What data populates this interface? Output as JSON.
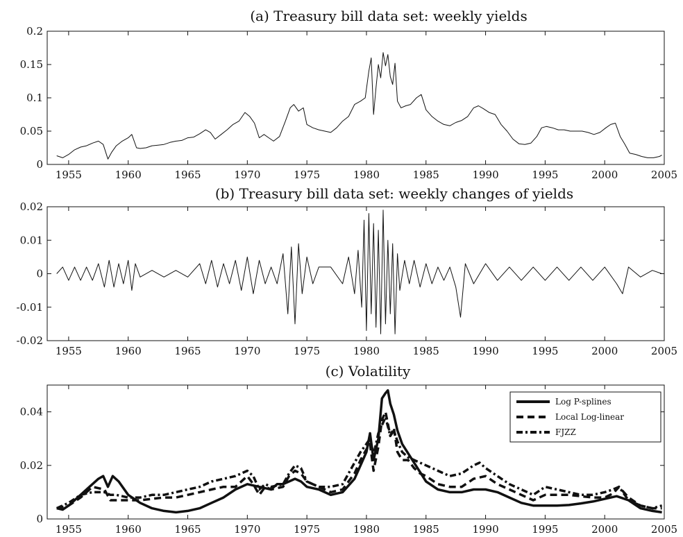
{
  "chart_data": [
    {
      "type": "line",
      "title": "(a) Treasury bill data set: weekly yields",
      "xlabel": "",
      "ylabel": "",
      "xlim": [
        1953.2,
        2005
      ],
      "ylim": [
        0,
        0.2
      ],
      "xticks": [
        "1955",
        "1960",
        "1965",
        "1970",
        "1975",
        "1980",
        "1985",
        "1990",
        "1995",
        "2000",
        "2005"
      ],
      "yticks": [
        "0",
        "0.05",
        "0.1",
        "0.15",
        "0.2"
      ],
      "grid": false,
      "series": [
        {
          "x": [
            1954.0,
            1954.5,
            1955.0,
            1955.5,
            1956.0,
            1956.5,
            1957.0,
            1957.5,
            1957.9,
            1958.3,
            1958.6,
            1959.0,
            1959.5,
            1960.0,
            1960.3,
            1960.7,
            1961.0,
            1961.5,
            1962.0,
            1962.5,
            1963.0,
            1963.5,
            1964.0,
            1964.5,
            1965.0,
            1965.5,
            1966.0,
            1966.5,
            1966.9,
            1967.3,
            1967.8,
            1968.3,
            1968.8,
            1969.3,
            1969.8,
            1970.2,
            1970.6,
            1971.0,
            1971.4,
            1971.8,
            1972.2,
            1972.7,
            1973.2,
            1973.6,
            1973.9,
            1974.3,
            1974.7,
            1975.0,
            1975.5,
            1976.0,
            1976.5,
            1977.0,
            1977.5,
            1978.0,
            1978.5,
            1979.0,
            1979.5,
            1979.9,
            1980.2,
            1980.4,
            1980.6,
            1980.8,
            1981.0,
            1981.2,
            1981.4,
            1981.6,
            1981.8,
            1982.0,
            1982.2,
            1982.4,
            1982.6,
            1982.9,
            1983.3,
            1983.7,
            1984.2,
            1984.6,
            1985.0,
            1985.5,
            1986.0,
            1986.5,
            1987.0,
            1987.5,
            1988.0,
            1988.5,
            1989.0,
            1989.4,
            1989.8,
            1990.3,
            1990.8,
            1991.3,
            1991.8,
            1992.3,
            1992.8,
            1993.3,
            1993.8,
            1994.3,
            1994.7,
            1995.1,
            1995.6,
            1996.1,
            1996.6,
            1997.1,
            1997.6,
            1998.1,
            1998.6,
            1999.1,
            1999.6,
            2000.1,
            2000.5,
            2000.9,
            2001.3,
            2001.7,
            2002.1,
            2002.6,
            2003.1,
            2003.6,
            2004.1,
            2004.6,
            2004.8
          ],
          "y": [
            0.013,
            0.01,
            0.015,
            0.022,
            0.026,
            0.028,
            0.032,
            0.035,
            0.03,
            0.008,
            0.018,
            0.028,
            0.035,
            0.04,
            0.045,
            0.025,
            0.024,
            0.025,
            0.028,
            0.029,
            0.03,
            0.033,
            0.035,
            0.036,
            0.04,
            0.041,
            0.046,
            0.052,
            0.048,
            0.038,
            0.045,
            0.052,
            0.06,
            0.065,
            0.078,
            0.072,
            0.062,
            0.04,
            0.045,
            0.04,
            0.035,
            0.042,
            0.065,
            0.085,
            0.09,
            0.08,
            0.085,
            0.06,
            0.055,
            0.052,
            0.05,
            0.048,
            0.055,
            0.065,
            0.072,
            0.09,
            0.095,
            0.1,
            0.14,
            0.16,
            0.075,
            0.115,
            0.15,
            0.13,
            0.168,
            0.148,
            0.165,
            0.132,
            0.12,
            0.152,
            0.095,
            0.085,
            0.088,
            0.09,
            0.1,
            0.105,
            0.082,
            0.072,
            0.065,
            0.06,
            0.058,
            0.063,
            0.066,
            0.072,
            0.085,
            0.088,
            0.084,
            0.078,
            0.075,
            0.06,
            0.05,
            0.038,
            0.031,
            0.03,
            0.032,
            0.042,
            0.055,
            0.057,
            0.055,
            0.052,
            0.052,
            0.05,
            0.05,
            0.05,
            0.048,
            0.045,
            0.048,
            0.055,
            0.06,
            0.062,
            0.042,
            0.03,
            0.017,
            0.015,
            0.012,
            0.01,
            0.01,
            0.012,
            0.014
          ]
        }
      ]
    },
    {
      "type": "line",
      "title": "(b) Treasury bill data set: weekly changes of yields",
      "xlabel": "",
      "ylabel": "",
      "xlim": [
        1953.2,
        2005
      ],
      "ylim": [
        -0.02,
        0.02
      ],
      "xticks": [
        "1955",
        "1960",
        "1965",
        "1970",
        "1975",
        "1980",
        "1985",
        "1990",
        "1995",
        "2000",
        "2005"
      ],
      "yticks": [
        "-0.02",
        "-0.01",
        "0",
        "0.01",
        "0.02"
      ],
      "grid": false,
      "series": [
        {
          "x": [
            1954.0,
            1954.5,
            1955.0,
            1955.5,
            1956.0,
            1956.5,
            1957.0,
            1957.5,
            1958.0,
            1958.4,
            1958.8,
            1959.2,
            1959.6,
            1960.0,
            1960.3,
            1960.6,
            1961.0,
            1962.0,
            1963.0,
            1964.0,
            1965.0,
            1966.0,
            1966.5,
            1967.0,
            1967.5,
            1968.0,
            1968.5,
            1969.0,
            1969.5,
            1970.0,
            1970.5,
            1971.0,
            1971.5,
            1972.0,
            1972.5,
            1973.0,
            1973.4,
            1973.7,
            1974.0,
            1974.3,
            1974.6,
            1975.0,
            1975.5,
            1976.0,
            1977.0,
            1978.0,
            1978.5,
            1979.0,
            1979.3,
            1979.6,
            1979.8,
            1980.0,
            1980.2,
            1980.4,
            1980.6,
            1980.8,
            1981.0,
            1981.2,
            1981.4,
            1981.6,
            1981.8,
            1982.0,
            1982.2,
            1982.4,
            1982.6,
            1982.8,
            1983.2,
            1983.6,
            1984.0,
            1984.5,
            1985.0,
            1985.5,
            1986.0,
            1986.5,
            1987.0,
            1987.5,
            1987.9,
            1988.3,
            1989.0,
            1990.0,
            1991.0,
            1992.0,
            1993.0,
            1994.0,
            1995.0,
            1996.0,
            1997.0,
            1998.0,
            1999.0,
            2000.0,
            2001.0,
            2001.5,
            2002.0,
            2003.0,
            2004.0,
            2004.8
          ],
          "y": [
            0.0,
            0.002,
            -0.002,
            0.002,
            -0.002,
            0.002,
            -0.002,
            0.003,
            -0.004,
            0.004,
            -0.004,
            0.003,
            -0.003,
            0.004,
            -0.005,
            0.003,
            -0.001,
            0.001,
            -0.001,
            0.001,
            -0.001,
            0.003,
            -0.003,
            0.004,
            -0.004,
            0.003,
            -0.003,
            0.004,
            -0.005,
            0.005,
            -0.006,
            0.004,
            -0.003,
            0.002,
            -0.003,
            0.006,
            -0.012,
            0.008,
            -0.015,
            0.009,
            -0.006,
            0.005,
            -0.003,
            0.002,
            0.002,
            -0.003,
            0.005,
            -0.006,
            0.007,
            -0.01,
            0.016,
            -0.017,
            0.018,
            -0.012,
            0.015,
            -0.016,
            0.013,
            -0.018,
            0.019,
            -0.015,
            0.01,
            -0.012,
            0.009,
            -0.018,
            0.006,
            -0.005,
            0.004,
            -0.003,
            0.004,
            -0.004,
            0.003,
            -0.003,
            0.002,
            -0.002,
            0.002,
            -0.004,
            -0.013,
            0.003,
            -0.003,
            0.003,
            -0.002,
            0.002,
            -0.002,
            0.002,
            -0.002,
            0.002,
            -0.002,
            0.002,
            -0.002,
            0.002,
            -0.003,
            -0.006,
            0.002,
            -0.001,
            0.001,
            0.0
          ]
        }
      ]
    },
    {
      "type": "line",
      "title": "(c) Volatility",
      "xlabel": "",
      "ylabel": "",
      "xlim": [
        1953.2,
        2005
      ],
      "ylim": [
        0,
        0.05
      ],
      "xticks": [
        "1955",
        "1960",
        "1965",
        "1970",
        "1975",
        "1980",
        "1985",
        "1990",
        "1995",
        "2000",
        "2005"
      ],
      "yticks": [
        "0",
        "0.02",
        "0.04"
      ],
      "grid": false,
      "legend_position": "top-right",
      "series": [
        {
          "name": "Log P-splines",
          "style": "solid",
          "x": [
            1954.0,
            1954.5,
            1955.0,
            1956.0,
            1957.0,
            1957.5,
            1957.9,
            1958.3,
            1958.7,
            1959.2,
            1960.0,
            1961.0,
            1962.0,
            1963.0,
            1964.0,
            1965.0,
            1966.0,
            1967.0,
            1968.0,
            1969.0,
            1970.0,
            1971.0,
            1972.0,
            1972.5,
            1973.0,
            1973.5,
            1974.0,
            1974.5,
            1975.0,
            1976.0,
            1977.0,
            1978.0,
            1979.0,
            1979.5,
            1980.0,
            1980.3,
            1980.6,
            1981.0,
            1981.3,
            1981.6,
            1981.8,
            1982.0,
            1982.3,
            1982.6,
            1983.0,
            1984.0,
            1985.0,
            1986.0,
            1987.0,
            1988.0,
            1989.0,
            1990.0,
            1991.0,
            1992.0,
            1993.0,
            1994.0,
            1995.0,
            1996.0,
            1997.0,
            1998.0,
            1999.0,
            2000.0,
            2001.0,
            2002.0,
            2003.0,
            2004.0,
            2004.8
          ],
          "y": [
            0.004,
            0.0035,
            0.005,
            0.009,
            0.013,
            0.015,
            0.016,
            0.012,
            0.016,
            0.014,
            0.009,
            0.006,
            0.004,
            0.003,
            0.0025,
            0.003,
            0.004,
            0.006,
            0.008,
            0.011,
            0.013,
            0.012,
            0.011,
            0.013,
            0.013,
            0.014,
            0.015,
            0.014,
            0.012,
            0.011,
            0.009,
            0.01,
            0.015,
            0.02,
            0.025,
            0.032,
            0.022,
            0.03,
            0.045,
            0.047,
            0.048,
            0.043,
            0.039,
            0.033,
            0.028,
            0.021,
            0.014,
            0.011,
            0.01,
            0.01,
            0.011,
            0.011,
            0.01,
            0.008,
            0.006,
            0.005,
            0.005,
            0.005,
            0.0052,
            0.0058,
            0.0065,
            0.0075,
            0.0085,
            0.007,
            0.004,
            0.003,
            0.0025
          ]
        },
        {
          "name": "Local Log-linear",
          "style": "dashed",
          "x": [
            1954.0,
            1955.0,
            1956.0,
            1957.0,
            1958.0,
            1958.5,
            1959.0,
            1960.0,
            1961.0,
            1962.0,
            1963.0,
            1964.0,
            1965.0,
            1966.0,
            1967.0,
            1968.0,
            1969.0,
            1970.0,
            1970.5,
            1971.0,
            1971.5,
            1972.0,
            1973.0,
            1973.5,
            1974.0,
            1974.5,
            1975.0,
            1976.0,
            1977.0,
            1978.0,
            1979.0,
            1979.5,
            1980.0,
            1980.3,
            1980.6,
            1981.0,
            1981.3,
            1981.6,
            1982.0,
            1982.3,
            1982.6,
            1983.0,
            1983.5,
            1984.0,
            1984.5,
            1985.0,
            1986.0,
            1987.0,
            1988.0,
            1989.0,
            1990.0,
            1991.0,
            1992.0,
            1993.0,
            1994.0,
            1995.0,
            1996.0,
            1997.0,
            1998.0,
            1999.0,
            2000.0,
            2000.7,
            2001.2,
            2002.0,
            2003.0,
            2004.0,
            2004.8
          ],
          "y": [
            0.004,
            0.005,
            0.008,
            0.012,
            0.011,
            0.007,
            0.007,
            0.007,
            0.007,
            0.0075,
            0.008,
            0.008,
            0.009,
            0.01,
            0.011,
            0.012,
            0.012,
            0.016,
            0.013,
            0.009,
            0.012,
            0.011,
            0.012,
            0.016,
            0.018,
            0.017,
            0.014,
            0.012,
            0.01,
            0.011,
            0.017,
            0.022,
            0.026,
            0.028,
            0.018,
            0.027,
            0.037,
            0.04,
            0.031,
            0.034,
            0.025,
            0.022,
            0.022,
            0.019,
            0.017,
            0.016,
            0.013,
            0.012,
            0.012,
            0.015,
            0.016,
            0.013,
            0.011,
            0.009,
            0.007,
            0.009,
            0.009,
            0.009,
            0.0085,
            0.008,
            0.008,
            0.0095,
            0.012,
            0.008,
            0.005,
            0.004,
            0.004
          ]
        },
        {
          "name": "FJZZ",
          "style": "dashdot",
          "x": [
            1954.0,
            1955.0,
            1956.0,
            1957.0,
            1958.0,
            1958.5,
            1959.0,
            1960.0,
            1961.0,
            1962.0,
            1963.0,
            1964.0,
            1965.0,
            1966.0,
            1967.0,
            1968.0,
            1969.0,
            1970.0,
            1970.5,
            1971.0,
            1971.5,
            1972.0,
            1973.0,
            1973.5,
            1974.0,
            1974.5,
            1975.0,
            1976.0,
            1977.0,
            1978.0,
            1979.0,
            1979.5,
            1980.0,
            1980.3,
            1980.6,
            1981.0,
            1981.3,
            1981.6,
            1982.0,
            1982.3,
            1982.6,
            1983.0,
            1983.5,
            1984.0,
            1985.0,
            1986.0,
            1987.0,
            1988.0,
            1989.0,
            1989.5,
            1990.0,
            1991.0,
            1992.0,
            1993.0,
            1994.0,
            1995.0,
            1996.0,
            1997.0,
            1998.0,
            1999.0,
            2000.0,
            2000.7,
            2001.2,
            2002.0,
            2003.0,
            2004.0,
            2004.8
          ],
          "y": [
            0.004,
            0.006,
            0.009,
            0.01,
            0.01,
            0.009,
            0.009,
            0.008,
            0.008,
            0.009,
            0.009,
            0.01,
            0.011,
            0.012,
            0.014,
            0.015,
            0.016,
            0.018,
            0.016,
            0.011,
            0.013,
            0.012,
            0.013,
            0.017,
            0.02,
            0.019,
            0.014,
            0.012,
            0.012,
            0.013,
            0.021,
            0.025,
            0.028,
            0.03,
            0.024,
            0.032,
            0.035,
            0.038,
            0.031,
            0.033,
            0.029,
            0.025,
            0.023,
            0.022,
            0.02,
            0.018,
            0.016,
            0.017,
            0.02,
            0.021,
            0.019,
            0.016,
            0.013,
            0.011,
            0.009,
            0.012,
            0.011,
            0.01,
            0.009,
            0.009,
            0.01,
            0.011,
            0.012,
            0.007,
            0.005,
            0.004,
            0.005
          ]
        }
      ]
    }
  ]
}
